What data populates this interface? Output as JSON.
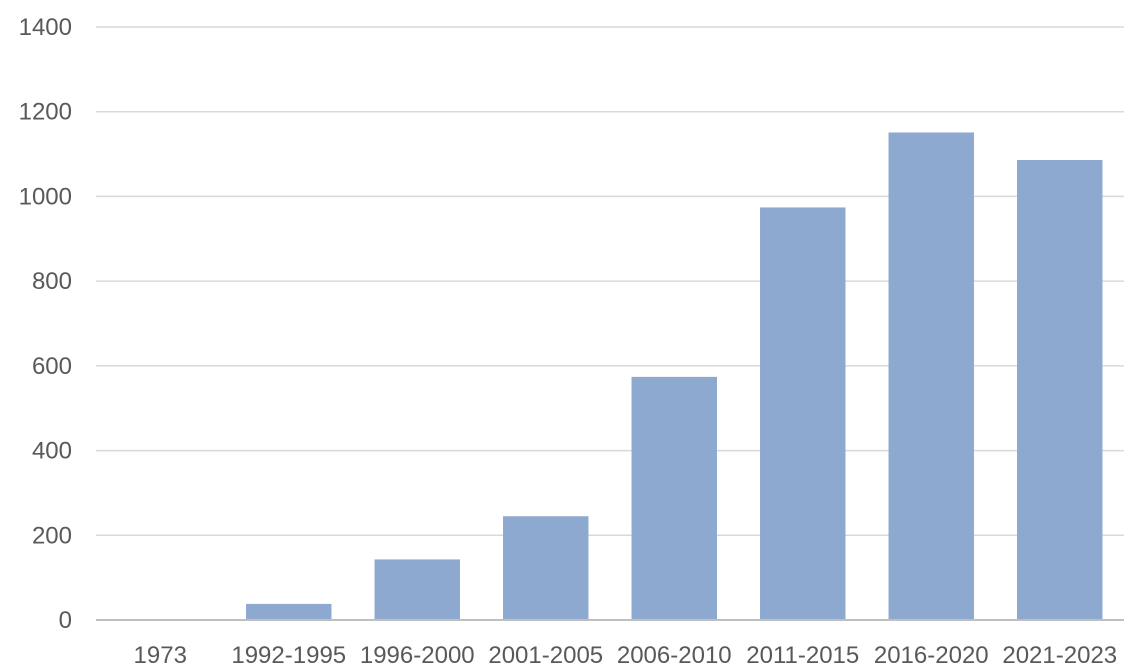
{
  "chart_data": {
    "type": "bar",
    "title": "",
    "xlabel": "",
    "ylabel": "",
    "categories": [
      "1973",
      "1992-1995",
      "1996-2000",
      "2001-2005",
      "2006-2010",
      "2011-2015",
      "2016-2020",
      "2021-2023"
    ],
    "values": [
      1,
      38,
      143,
      245,
      574,
      974,
      1151,
      1086
    ],
    "ylim": [
      0,
      1400
    ],
    "yticks": [
      0,
      200,
      400,
      600,
      800,
      1000,
      1200,
      1400
    ],
    "grid": true,
    "legend": "none",
    "bar_color": "#8ea9cf",
    "grid_color": "#d9d9d9",
    "axis_color": "#bfbfbf",
    "label_color": "#595959"
  }
}
